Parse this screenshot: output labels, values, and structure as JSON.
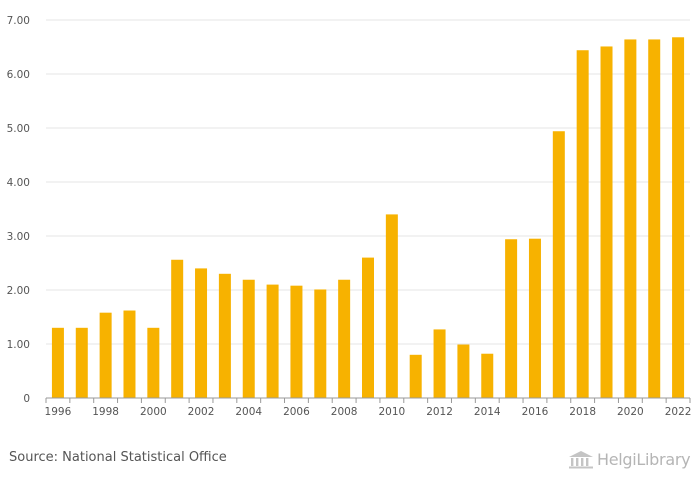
{
  "chart_data": {
    "type": "bar",
    "title": "",
    "xlabel": "",
    "ylabel": "",
    "ylim": [
      0,
      7
    ],
    "y_ticks": [
      "0",
      "1.00",
      "2.00",
      "3.00",
      "4.00",
      "5.00",
      "6.00",
      "7.00"
    ],
    "x_tick_labels": [
      "1996",
      "1998",
      "2000",
      "2002",
      "2004",
      "2006",
      "2008",
      "2010",
      "2012",
      "2014",
      "2016",
      "2018",
      "2020",
      "2022"
    ],
    "grid": true,
    "bar_color": "#f7b200",
    "categories": [
      "1996",
      "1997",
      "1998",
      "1999",
      "2000",
      "2001",
      "2002",
      "2003",
      "2004",
      "2005",
      "2006",
      "2007",
      "2008",
      "2009",
      "2010",
      "2011",
      "2012",
      "2013",
      "2014",
      "2015",
      "2016",
      "2017",
      "2018",
      "2019",
      "2020",
      "2021",
      "2022"
    ],
    "values": [
      1.3,
      1.3,
      1.58,
      1.62,
      1.3,
      2.56,
      2.4,
      2.3,
      2.19,
      2.1,
      2.08,
      2.01,
      2.19,
      2.6,
      3.4,
      0.8,
      1.27,
      0.99,
      0.82,
      2.94,
      2.95,
      4.94,
      6.44,
      6.51,
      6.64,
      6.64,
      6.68
    ]
  },
  "footer": {
    "source": "Source: National Statistical Office",
    "logo_text": "HelgiLibrary"
  }
}
